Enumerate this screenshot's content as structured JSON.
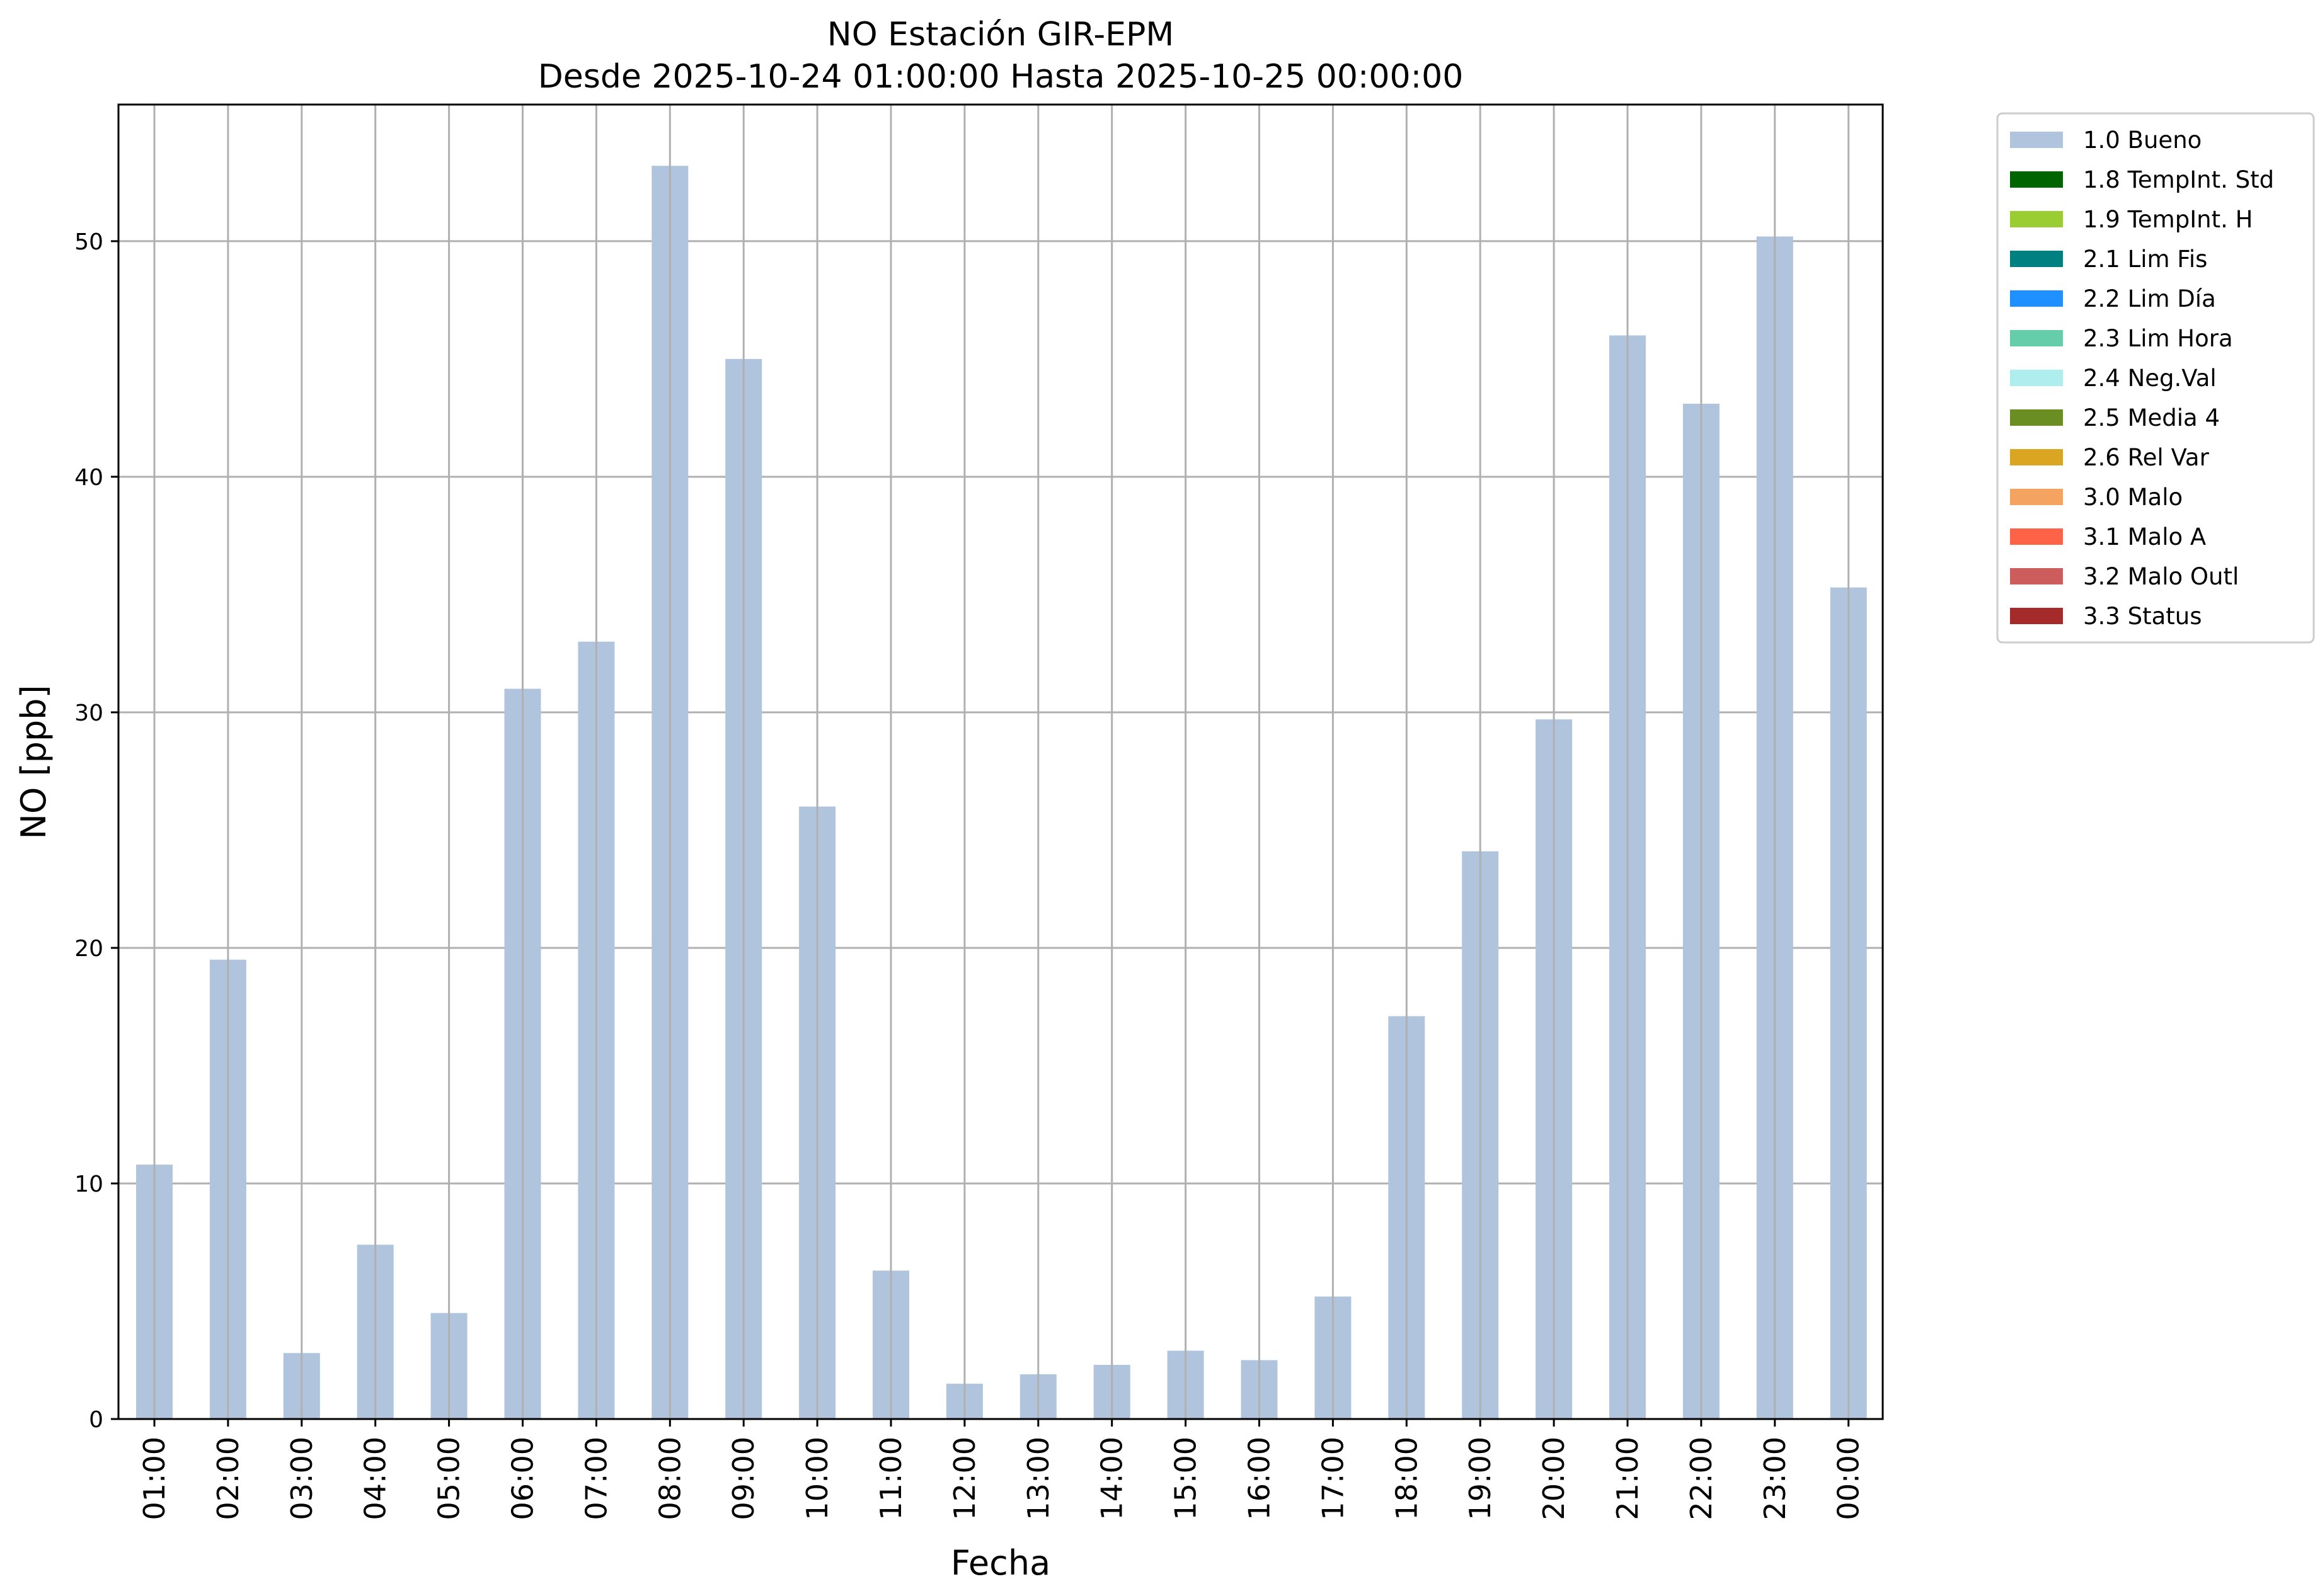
{
  "chart_data": {
    "type": "bar",
    "title": "NO Estación GIR-EPM",
    "subtitle": "Desde 2025-10-24 01:00:00 Hasta 2025-10-25 00:00:00",
    "xlabel": "Fecha",
    "ylabel": "NO [ppb]",
    "ylim": [
      0,
      55.8
    ],
    "yticks": [
      0,
      10,
      20,
      30,
      40,
      50
    ],
    "grid": true,
    "legend_position": "outside-top-right",
    "categories": [
      "01:00",
      "02:00",
      "03:00",
      "04:00",
      "05:00",
      "06:00",
      "07:00",
      "08:00",
      "09:00",
      "10:00",
      "11:00",
      "12:00",
      "13:00",
      "14:00",
      "15:00",
      "16:00",
      "17:00",
      "18:00",
      "19:00",
      "20:00",
      "21:00",
      "22:00",
      "23:00",
      "00:00"
    ],
    "series": [
      {
        "name": "1.0 Bueno",
        "color": "#b0c4de",
        "values": [
          10.8,
          19.5,
          2.8,
          7.4,
          4.5,
          31.0,
          33.0,
          53.2,
          45.0,
          26.0,
          6.3,
          1.5,
          1.9,
          2.3,
          2.9,
          2.5,
          5.2,
          17.1,
          24.1,
          29.7,
          46.0,
          43.1,
          50.2,
          35.3
        ]
      }
    ],
    "legend": [
      {
        "label": "1.0 Bueno",
        "color": "#b0c4de"
      },
      {
        "label": "1.8 TempInt. Std",
        "color": "#006400"
      },
      {
        "label": "1.9 TempInt. H",
        "color": "#9acd32"
      },
      {
        "label": "2.1 Lim Fis",
        "color": "#008080"
      },
      {
        "label": "2.2 Lim Día",
        "color": "#1e90ff"
      },
      {
        "label": "2.3 Lim Hora",
        "color": "#66cdaa"
      },
      {
        "label": "2.4 Neg.Val",
        "color": "#afeeee"
      },
      {
        "label": "2.5 Media 4",
        "color": "#6b8e23"
      },
      {
        "label": "2.6 Rel Var",
        "color": "#daa520"
      },
      {
        "label": "3.0 Malo",
        "color": "#f4a460"
      },
      {
        "label": "3.1 Malo A",
        "color": "#ff6347"
      },
      {
        "label": "3.2 Malo Outl",
        "color": "#cd5c5c"
      },
      {
        "label": "3.3 Status",
        "color": "#a52a2a"
      }
    ]
  }
}
